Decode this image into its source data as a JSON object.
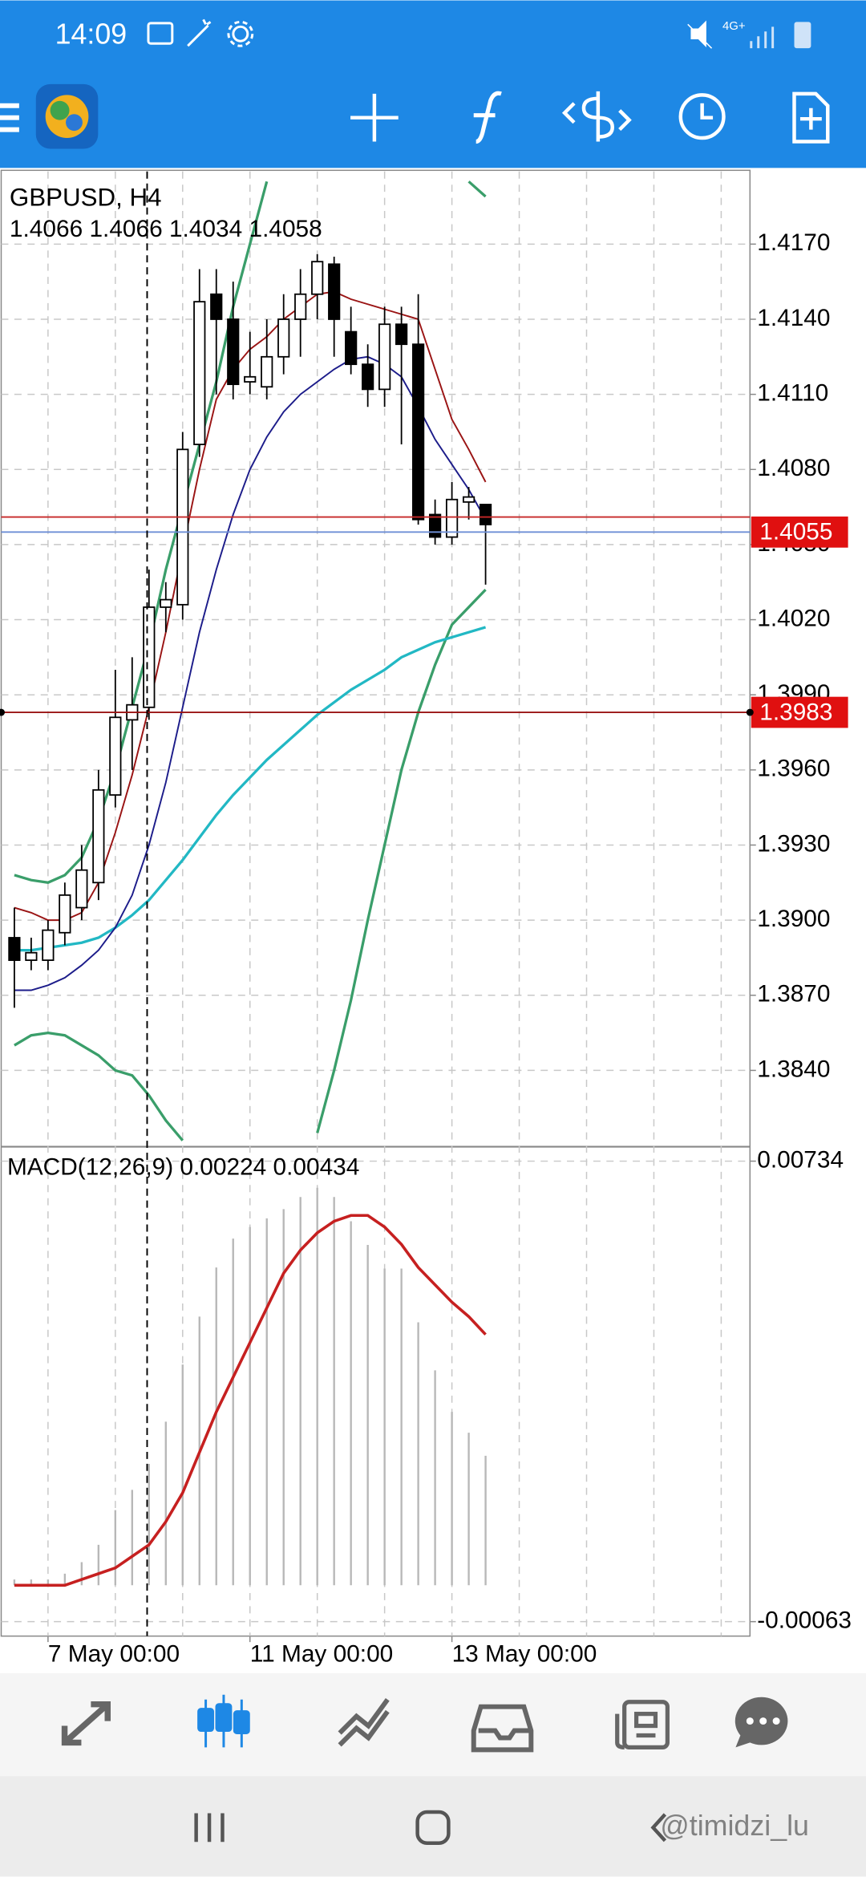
{
  "status_bar": {
    "time": "14:09"
  },
  "chart_data": [
    {
      "type": "candlestick",
      "title": "GBPUSD, H4",
      "subtitle": "1.4066 1.4066 1.4034 1.4058",
      "categories": [
        null,
        null,
        "7 May 00:00",
        null,
        null,
        null,
        null,
        null,
        null,
        null,
        null,
        null,
        null,
        null,
        "11 May 00:00",
        null,
        null,
        null,
        null,
        null,
        null,
        null,
        null,
        null,
        null,
        null,
        "13 May 00:00",
        null,
        null
      ],
      "candles": {
        "open": [
          1.3893,
          1.3884,
          1.3884,
          1.3895,
          1.3905,
          1.3915,
          1.395,
          1.398,
          1.3985,
          1.4025,
          1.4026,
          1.409,
          1.415,
          1.414,
          1.4115,
          1.4113,
          1.4125,
          1.414,
          1.415,
          1.4162,
          1.4135,
          1.4122,
          1.4112,
          1.4138,
          1.413,
          1.4062,
          1.4053,
          1.4067,
          1.4066
        ],
        "high": [
          1.3905,
          1.3893,
          1.39,
          1.3915,
          1.393,
          1.396,
          1.4,
          1.4005,
          1.404,
          1.4035,
          1.4095,
          1.416,
          1.416,
          1.4155,
          1.4135,
          1.414,
          1.415,
          1.416,
          1.4166,
          1.4165,
          1.4145,
          1.413,
          1.4145,
          1.4145,
          1.415,
          1.4068,
          1.4075,
          1.4073,
          1.4066
        ],
        "low": [
          1.3865,
          1.388,
          1.388,
          1.389,
          1.39,
          1.3908,
          1.3945,
          1.396,
          1.398,
          1.4015,
          1.402,
          1.4085,
          1.411,
          1.4108,
          1.411,
          1.4108,
          1.4118,
          1.4125,
          1.414,
          1.4125,
          1.4118,
          1.4105,
          1.4105,
          1.409,
          1.4058,
          1.405,
          1.405,
          1.406,
          1.4034
        ],
        "close": [
          1.3884,
          1.3887,
          1.3896,
          1.391,
          1.392,
          1.3952,
          1.3981,
          1.3986,
          1.4025,
          1.4028,
          1.4088,
          1.4147,
          1.414,
          1.4114,
          1.4117,
          1.4125,
          1.414,
          1.415,
          1.4163,
          1.414,
          1.4122,
          1.4112,
          1.4138,
          1.413,
          1.406,
          1.4053,
          1.4068,
          1.4069,
          1.4058
        ]
      },
      "series": [
        {
          "color": "#3a9e6a",
          "values": [
            1.3918,
            1.3916,
            1.3915,
            1.3918,
            1.3925,
            1.394,
            1.396,
            1.3985,
            1.401,
            1.404,
            1.4065,
            1.409,
            1.4115,
            1.4145,
            1.417,
            1.4195,
            null,
            null,
            null,
            null,
            null,
            null,
            null,
            null,
            null,
            null,
            null,
            1.4195,
            1.4189
          ]
        },
        {
          "color": "#3a9e6a",
          "values": [
            1.385,
            1.3854,
            1.3855,
            1.3854,
            1.385,
            1.3846,
            1.384,
            1.3838,
            1.383,
            1.382,
            1.3812,
            null,
            null,
            null,
            null,
            null,
            null,
            null,
            1.3815,
            1.384,
            1.3868,
            1.39,
            1.393,
            1.396,
            1.3983,
            1.4002,
            1.4018,
            1.4025,
            1.4032
          ]
        },
        {
          "color": "#22b8c4",
          "values": [
            1.3888,
            1.3888,
            1.3889,
            1.389,
            1.3891,
            1.3893,
            1.3897,
            1.3902,
            1.3908,
            1.3916,
            1.3924,
            1.3933,
            1.3942,
            1.395,
            1.3957,
            1.3964,
            1.397,
            1.3976,
            1.3982,
            1.3987,
            1.3992,
            1.3996,
            1.4,
            1.4005,
            1.4008,
            1.4011,
            1.4013,
            1.4015,
            1.4017
          ]
        },
        {
          "color": "#9a1414",
          "values": [
            1.3905,
            1.3903,
            1.39,
            1.39,
            1.3903,
            1.3915,
            1.3935,
            1.3958,
            1.3985,
            1.4015,
            1.4048,
            1.408,
            1.4108,
            1.412,
            1.4128,
            1.4133,
            1.414,
            1.4145,
            1.415,
            1.4151,
            1.4148,
            1.4146,
            1.4144,
            1.4142,
            1.414,
            1.412,
            1.41,
            1.4088,
            1.4075
          ]
        },
        {
          "color": "#1c1c8a",
          "values": [
            1.3872,
            1.3872,
            1.3874,
            1.3877,
            1.3882,
            1.3888,
            1.3897,
            1.391,
            1.393,
            1.3955,
            1.3985,
            1.4015,
            1.404,
            1.4062,
            1.408,
            1.4093,
            1.4103,
            1.411,
            1.4115,
            1.412,
            1.4124,
            1.4125,
            1.4122,
            1.4117,
            1.4105,
            1.4092,
            1.4082,
            1.4072,
            1.406
          ]
        }
      ],
      "price_lines": [
        {
          "value": 1.4061,
          "color": "#c62828"
        },
        {
          "value": 1.4055,
          "color": "#6f8fd6",
          "label": "1.4055"
        },
        {
          "value": 1.3983,
          "color": "#9a1414",
          "label": "1.3983"
        }
      ],
      "ylim": [
        1.381,
        1.4199
      ],
      "yticks": [
        {
          "value": 1.417,
          "label": "1.4170"
        },
        {
          "value": 1.414,
          "label": "1.4140"
        },
        {
          "value": 1.411,
          "label": "1.4110"
        },
        {
          "value": 1.408,
          "label": "1.4080"
        },
        {
          "value": 1.405,
          "label": "1.4050"
        },
        {
          "value": 1.402,
          "label": "1.4020"
        },
        {
          "value": 1.399,
          "label": "1.3990"
        },
        {
          "value": 1.396,
          "label": "1.3960"
        },
        {
          "value": 1.393,
          "label": "1.3930"
        },
        {
          "value": 1.39,
          "label": "1.3900"
        },
        {
          "value": 1.387,
          "label": "1.3870"
        },
        {
          "value": 1.384,
          "label": "1.3840"
        }
      ],
      "grid": true
    },
    {
      "type": "bar",
      "title": "MACD(12,26,9) 0.00224 0.00434",
      "series": [
        {
          "type": "bar",
          "color": "#b8b8b8",
          "values": [
            0.0001,
            0.0001,
            0.0001,
            0.0002,
            0.0004,
            0.0007,
            0.0013,
            0.00165,
            0.0021,
            0.00283,
            0.00382,
            0.00465,
            0.0055,
            0.006,
            0.0062,
            0.00635,
            0.00651,
            0.00672,
            0.00688,
            0.00672,
            0.0063,
            0.00589,
            0.00548,
            0.00548,
            0.00455,
            0.00372,
            0.003,
            0.00264,
            0.00224
          ]
        },
        {
          "type": "line",
          "color": "#c62020",
          "values": [
            0.0,
            0.0,
            0.0,
            0.0,
            0.0001,
            0.0002,
            0.0003,
            0.0005,
            0.0007,
            0.0011,
            0.0016,
            0.0023,
            0.003,
            0.0036,
            0.0042,
            0.0048,
            0.0054,
            0.0058,
            0.0061,
            0.0063,
            0.0064,
            0.0064,
            0.0062,
            0.0059,
            0.0055,
            0.0052,
            0.0049,
            0.00465,
            0.00434
          ]
        }
      ],
      "ylim": [
        -0.00088,
        0.00759
      ],
      "yticks": [
        0.00734,
        -0.00063
      ],
      "grid": true
    }
  ],
  "watermark": "@timidzi_lu"
}
